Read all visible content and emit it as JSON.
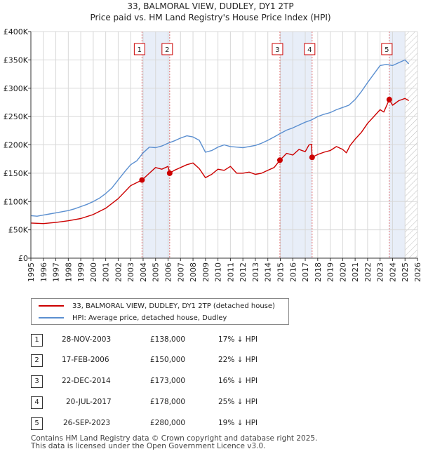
{
  "title_line1": "33, BALMORAL VIEW, DUDLEY, DY1 2TP",
  "title_line2": "Price paid vs. HM Land Registry's House Price Index (HPI)",
  "legend": {
    "property_label": "33, BALMORAL VIEW, DUDLEY, DY1 2TP (detached house)",
    "hpi_label": "HPI: Average price, detached house, Dudley"
  },
  "transactions": [
    {
      "num": "1",
      "date": "28-NOV-2003",
      "price": "£138,000",
      "hpi": "17% ↓ HPI"
    },
    {
      "num": "2",
      "date": "17-FEB-2006",
      "price": "£150,000",
      "hpi": "22% ↓ HPI"
    },
    {
      "num": "3",
      "date": "22-DEC-2014",
      "price": "£173,000",
      "hpi": "16% ↓ HPI"
    },
    {
      "num": "4",
      "date": "20-JUL-2017",
      "price": "£178,000",
      "hpi": "25% ↓ HPI"
    },
    {
      "num": "5",
      "date": "26-SEP-2023",
      "price": "£280,000",
      "hpi": "19% ↓ HPI"
    }
  ],
  "footer_line1": "Contains HM Land Registry data © Crown copyright and database right 2025.",
  "footer_line2": "This data is licensed under the Open Government Licence v3.0.",
  "colors": {
    "property": "#cc0000",
    "hpi": "#5b8fd0",
    "band": "#e8eef8",
    "grid": "#d8d8d8",
    "vline": "#e07070"
  },
  "chart_data": {
    "type": "line",
    "title": "33, BALMORAL VIEW, DUDLEY, DY1 2TP",
    "subtitle": "Price paid vs. HM Land Registry's House Price Index (HPI)",
    "xlabel": "",
    "ylabel": "",
    "xlim": [
      1995,
      2026
    ],
    "ylim": [
      0,
      400000
    ],
    "y_ticks": [
      0,
      50000,
      100000,
      150000,
      200000,
      250000,
      300000,
      350000,
      400000
    ],
    "y_tick_labels": [
      "£0",
      "£50K",
      "£100K",
      "£150K",
      "£200K",
      "£250K",
      "£300K",
      "£350K",
      "£400K"
    ],
    "x_ticks": [
      1995,
      1996,
      1997,
      1998,
      1999,
      2000,
      2001,
      2002,
      2003,
      2004,
      2005,
      2006,
      2007,
      2008,
      2009,
      2010,
      2011,
      2012,
      2013,
      2014,
      2015,
      2016,
      2017,
      2018,
      2019,
      2020,
      2021,
      2022,
      2023,
      2024,
      2025,
      2026
    ],
    "grid": true,
    "shaded_bands": [
      [
        2003.91,
        2006.13
      ],
      [
        2014.97,
        2017.55
      ],
      [
        2023.74,
        2025.0
      ]
    ],
    "hatched_region": [
      2025.0,
      2026
    ],
    "sale_markers": [
      {
        "label": "1",
        "x": 2003.91,
        "y": 138000
      },
      {
        "label": "2",
        "x": 2006.13,
        "y": 150000
      },
      {
        "label": "3",
        "x": 2014.97,
        "y": 173000
      },
      {
        "label": "4",
        "x": 2017.55,
        "y": 178000
      },
      {
        "label": "5",
        "x": 2023.74,
        "y": 280000
      }
    ],
    "series": [
      {
        "name": "33, BALMORAL VIEW, DUDLEY, DY1 2TP (detached house)",
        "x": [
          1995,
          1996,
          1997,
          1998,
          1999,
          2000,
          2001,
          2002,
          2003,
          2003.91,
          2004.5,
          2005,
          2005.5,
          2006.0,
          2006.13,
          2006.5,
          2007,
          2007.5,
          2008,
          2008.5,
          2009.0,
          2009.5,
          2010,
          2010.5,
          2011,
          2011.5,
          2012,
          2012.5,
          2013,
          2013.5,
          2014,
          2014.5,
          2014.97,
          2015.5,
          2016,
          2016.5,
          2017.0,
          2017.3,
          2017.5,
          2017.55,
          2018,
          2018.5,
          2019,
          2019.5,
          2020,
          2020.3,
          2020.6,
          2021,
          2021.5,
          2022,
          2022.5,
          2023,
          2023.3,
          2023.74,
          2024.0,
          2024.5,
          2025,
          2025.3
        ],
        "values": [
          62000,
          61000,
          63000,
          66000,
          70000,
          77000,
          88000,
          105000,
          128000,
          138000,
          150000,
          160000,
          157000,
          162000,
          150000,
          155000,
          160000,
          165000,
          168000,
          158000,
          142000,
          148000,
          157000,
          155000,
          162000,
          150000,
          150000,
          152000,
          148000,
          150000,
          155000,
          160000,
          173000,
          185000,
          182000,
          192000,
          188000,
          200000,
          201000,
          178000,
          183000,
          187000,
          190000,
          197000,
          192000,
          186000,
          199000,
          210000,
          222000,
          238000,
          250000,
          262000,
          258000,
          280000,
          270000,
          278000,
          282000,
          278000
        ]
      },
      {
        "name": "HPI: Average price, detached house, Dudley",
        "x": [
          1995,
          1995.5,
          1996,
          1996.5,
          1997,
          1997.5,
          1998,
          1998.5,
          1999,
          1999.5,
          2000,
          2000.5,
          2001,
          2001.5,
          2002,
          2002.5,
          2003,
          2003.5,
          2004,
          2004.5,
          2005,
          2005.5,
          2006,
          2006.5,
          2007,
          2007.5,
          2008,
          2008.5,
          2009,
          2009.5,
          2010,
          2010.5,
          2011,
          2011.5,
          2012,
          2012.5,
          2013,
          2013.5,
          2014,
          2014.5,
          2015,
          2015.5,
          2016,
          2016.5,
          2017,
          2017.5,
          2018,
          2018.5,
          2019,
          2019.5,
          2020,
          2020.5,
          2021,
          2021.5,
          2022,
          2022.5,
          2023,
          2023.5,
          2024,
          2024.5,
          2025,
          2025.3
        ],
        "values": [
          75000,
          74000,
          76000,
          78000,
          80000,
          82000,
          84000,
          87000,
          91000,
          95000,
          100000,
          106000,
          114000,
          124000,
          138000,
          152000,
          165000,
          172000,
          186000,
          196000,
          195000,
          198000,
          203000,
          207000,
          212000,
          216000,
          214000,
          208000,
          187000,
          190000,
          196000,
          200000,
          197000,
          196000,
          195000,
          197000,
          199000,
          203000,
          208000,
          214000,
          220000,
          226000,
          230000,
          235000,
          240000,
          244000,
          250000,
          254000,
          257000,
          262000,
          266000,
          270000,
          280000,
          294000,
          310000,
          325000,
          340000,
          342000,
          340000,
          345000,
          350000,
          343000
        ]
      }
    ]
  }
}
